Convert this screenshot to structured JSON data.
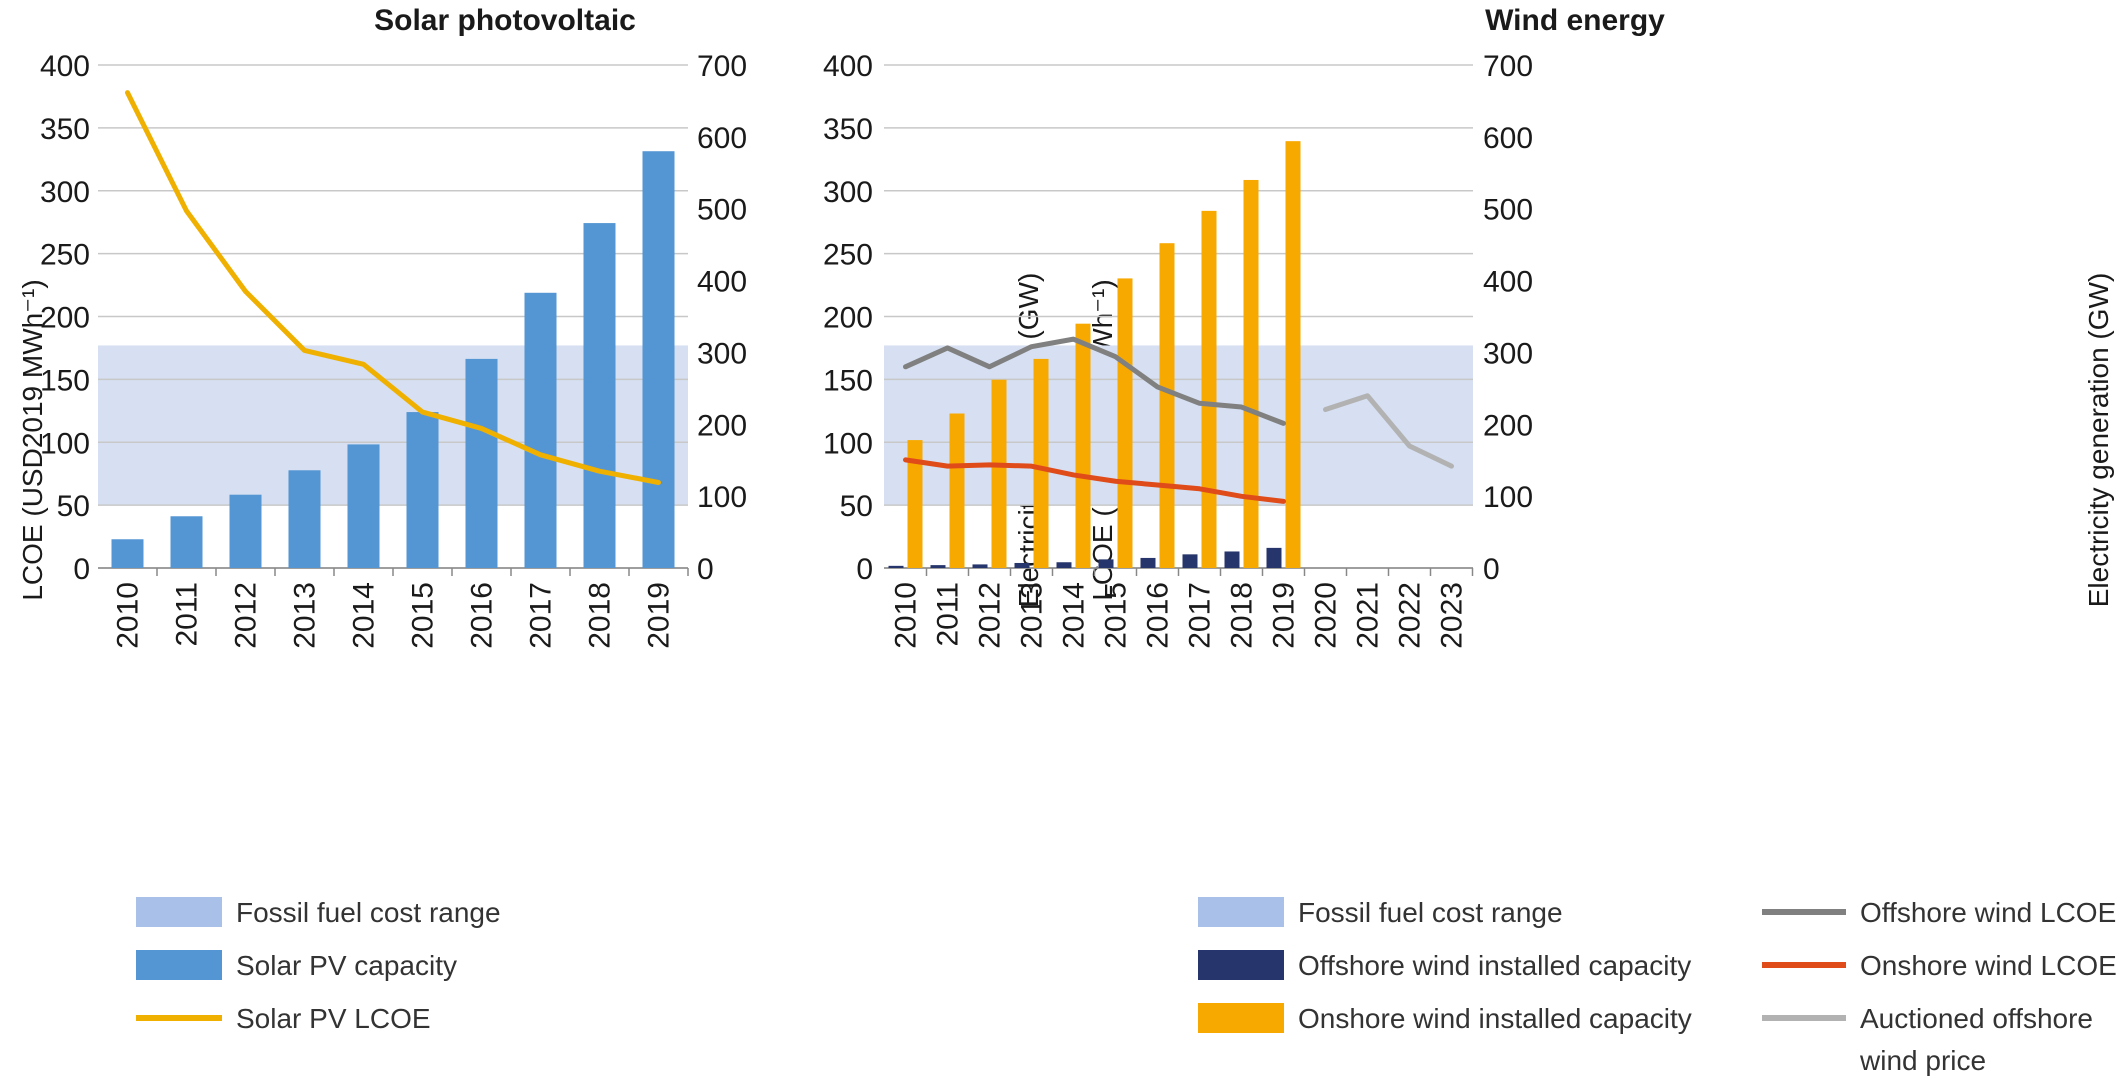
{
  "colors": {
    "fossil_band": "#d6e0f2",
    "fossil_legend": "#a9c1e8",
    "solar_bar": "#5495d3",
    "solar_line": "#f0b000",
    "offshore_bar": "#26356b",
    "onshore_bar": "#f7a900",
    "offshore_line": "#808080",
    "onshore_line": "#e04b1a",
    "auction_line": "#b2b2b2"
  },
  "chart_data": [
    {
      "type": "bar",
      "title": "Solar photovoltaic",
      "ylabel": "LCOE (USD2019 MWh⁻¹)",
      "y2label": "Electricity generation (GW)",
      "ylim": [
        0,
        400
      ],
      "y2lim": [
        0,
        700
      ],
      "yticks": [
        0,
        50,
        100,
        150,
        200,
        250,
        300,
        350,
        400
      ],
      "y2ticks": [
        0,
        100,
        200,
        300,
        400,
        500,
        600,
        700
      ],
      "grid": true,
      "categories": [
        "2010",
        "2011",
        "2012",
        "2013",
        "2014",
        "2015",
        "2016",
        "2017",
        "2018",
        "2019"
      ],
      "fossil_range": [
        50,
        177
      ],
      "series": [
        {
          "name": "Solar PV capacity",
          "kind": "bar",
          "axis": "right",
          "values": [
            40,
            72,
            102,
            136,
            172,
            217,
            291,
            383,
            480,
            580
          ]
        },
        {
          "name": "Solar PV LCOE",
          "kind": "line",
          "axis": "left",
          "values": [
            378,
            284,
            220,
            173,
            162,
            124,
            111,
            90,
            77,
            68
          ]
        }
      ],
      "legend": [
        "Fossil fuel cost range",
        "Solar PV capacity",
        "Solar PV LCOE"
      ]
    },
    {
      "type": "bar",
      "title": "Wind energy",
      "ylabel": "LCOE (USD2019 MWh⁻¹)",
      "y2label": "Electricity generation (GW)",
      "ylim": [
        0,
        400
      ],
      "y2lim": [
        0,
        700
      ],
      "yticks": [
        0,
        50,
        100,
        150,
        200,
        250,
        300,
        350,
        400
      ],
      "y2ticks": [
        0,
        100,
        200,
        300,
        400,
        500,
        600,
        700
      ],
      "grid": true,
      "categories": [
        "2010",
        "2011",
        "2012",
        "2013",
        "2014",
        "2015",
        "2016",
        "2017",
        "2018",
        "2019",
        "2020",
        "2021",
        "2022",
        "2023"
      ],
      "fossil_range": [
        50,
        177
      ],
      "series": [
        {
          "name": "Offshore wind installed capacity",
          "kind": "bar",
          "axis": "right",
          "values": [
            3,
            4,
            5,
            7,
            8,
            12,
            14,
            19,
            23,
            28,
            null,
            null,
            null,
            null
          ]
        },
        {
          "name": "Onshore wind installed capacity",
          "kind": "bar",
          "axis": "right",
          "values": [
            178,
            215,
            262,
            291,
            340,
            403,
            452,
            497,
            540,
            594,
            null,
            null,
            null,
            null
          ]
        },
        {
          "name": "Offshore wind LCOE",
          "kind": "line",
          "axis": "left",
          "values": [
            160,
            175,
            160,
            176,
            182,
            168,
            144,
            131,
            128,
            115,
            null,
            null,
            null,
            null
          ]
        },
        {
          "name": "Onshore wind LCOE",
          "kind": "line",
          "axis": "left",
          "values": [
            86,
            81,
            82,
            81,
            74,
            69,
            66,
            63,
            57,
            53,
            null,
            null,
            null,
            null
          ]
        },
        {
          "name": "Auctioned offshore wind price",
          "kind": "line",
          "axis": "left",
          "values": [
            null,
            null,
            null,
            null,
            null,
            null,
            null,
            null,
            null,
            null,
            126,
            137,
            97,
            81
          ]
        }
      ],
      "legend": [
        "Fossil fuel cost range",
        "Offshore wind installed capacity",
        "Onshore wind installed capacity",
        "Offshore wind LCOE",
        "Onshore wind LCOE",
        "Auctioned offshore wind price"
      ]
    }
  ]
}
